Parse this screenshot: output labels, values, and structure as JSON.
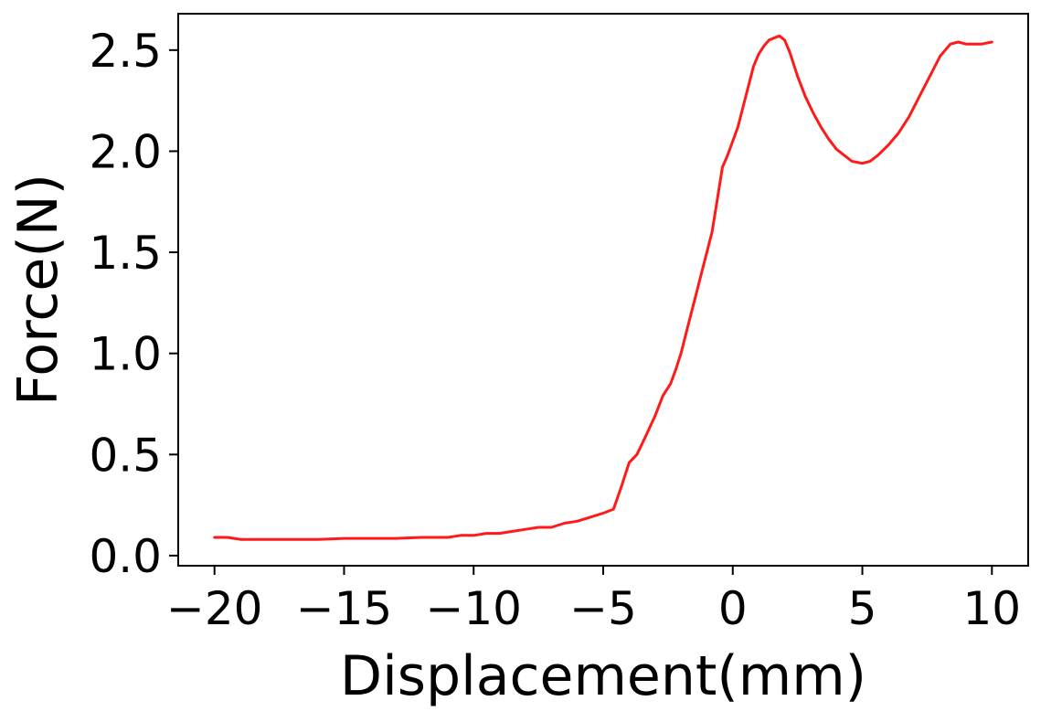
{
  "chart_data": {
    "type": "line",
    "title": "",
    "xlabel": "Displacement(mm)",
    "ylabel": "Force(N)",
    "xlim": [
      -21.4,
      11.4
    ],
    "ylim": [
      -0.05,
      2.68
    ],
    "xticks": [
      {
        "value": -20,
        "label": "−20"
      },
      {
        "value": -15,
        "label": "−15"
      },
      {
        "value": -10,
        "label": "−10"
      },
      {
        "value": -5,
        "label": "−5"
      },
      {
        "value": 0,
        "label": "0"
      },
      {
        "value": 5,
        "label": "5"
      },
      {
        "value": 10,
        "label": "10"
      }
    ],
    "yticks": [
      {
        "value": 0.0,
        "label": "0.0"
      },
      {
        "value": 0.5,
        "label": "0.5"
      },
      {
        "value": 1.0,
        "label": "1.0"
      },
      {
        "value": 1.5,
        "label": "1.5"
      },
      {
        "value": 2.0,
        "label": "2.0"
      },
      {
        "value": 2.5,
        "label": "2.5"
      }
    ],
    "grid": false,
    "legend": null,
    "series": [
      {
        "color": "#ff1a1a",
        "x": [
          -20,
          -19.5,
          -19,
          -18,
          -17,
          -16,
          -15,
          -14,
          -13,
          -12,
          -11,
          -10.5,
          -10,
          -9.5,
          -9,
          -8.5,
          -8,
          -7.5,
          -7,
          -6.5,
          -6,
          -5.5,
          -5,
          -4.6,
          -4.3,
          -4,
          -3.7,
          -3.4,
          -3,
          -2.7,
          -2.4,
          -2.2,
          -2,
          -1.8,
          -1.6,
          -1.4,
          -1.2,
          -1,
          -0.8,
          -0.6,
          -0.4,
          -0.2,
          0,
          0.2,
          0.4,
          0.6,
          0.8,
          1,
          1.2,
          1.4,
          1.6,
          1.8,
          2,
          2.2,
          2.5,
          2.8,
          3.1,
          3.4,
          3.7,
          4,
          4.3,
          4.6,
          5,
          5.3,
          5.6,
          6,
          6.4,
          6.8,
          7.2,
          7.6,
          8,
          8.4,
          8.7,
          9,
          9.3,
          9.6,
          10
        ],
        "y": [
          0.09,
          0.09,
          0.08,
          0.08,
          0.08,
          0.08,
          0.085,
          0.085,
          0.085,
          0.09,
          0.09,
          0.1,
          0.1,
          0.11,
          0.11,
          0.12,
          0.13,
          0.14,
          0.14,
          0.16,
          0.17,
          0.19,
          0.21,
          0.23,
          0.34,
          0.46,
          0.5,
          0.58,
          0.69,
          0.79,
          0.85,
          0.92,
          1.0,
          1.1,
          1.2,
          1.3,
          1.4,
          1.5,
          1.6,
          1.76,
          1.92,
          1.98,
          2.05,
          2.12,
          2.22,
          2.32,
          2.42,
          2.48,
          2.52,
          2.55,
          2.56,
          2.57,
          2.55,
          2.49,
          2.37,
          2.27,
          2.19,
          2.12,
          2.06,
          2.01,
          1.98,
          1.95,
          1.94,
          1.95,
          1.98,
          2.03,
          2.09,
          2.17,
          2.27,
          2.37,
          2.47,
          2.53,
          2.54,
          2.53,
          2.53,
          2.53,
          2.54
        ]
      }
    ]
  }
}
